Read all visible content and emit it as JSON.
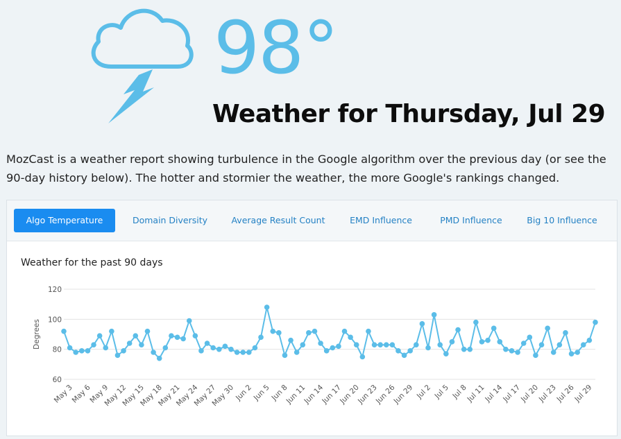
{
  "hero": {
    "icon": "storm-cloud-lightning-icon",
    "temperature": "98°",
    "headline": "Weather for Thursday, Jul 29"
  },
  "intro": "MozCast is a weather report showing turbulence in the Google algorithm over the previous day (or see the 90-day history below). The hotter and stormier the weather, the more Google's rankings changed.",
  "tabs": [
    {
      "label": "Algo Temperature",
      "active": true
    },
    {
      "label": "Domain Diversity",
      "active": false
    },
    {
      "label": "Average Result Count",
      "active": false
    },
    {
      "label": "EMD Influence",
      "active": false
    },
    {
      "label": "PMD Influence",
      "active": false
    },
    {
      "label": "Big 10 Influence",
      "active": false
    }
  ],
  "colors": {
    "accent": "#5bbde8",
    "tab_active": "#1a8cf0",
    "tab_text": "#2481c4",
    "series": "#5bbde8"
  },
  "chart_data": {
    "type": "line",
    "title": "Weather for the past 90 days",
    "ylabel": "Degrees",
    "xlabel": "",
    "ylim": [
      60,
      120
    ],
    "yticks": [
      60,
      80,
      100,
      120
    ],
    "grid": true,
    "x_tick_labels": [
      "May 3",
      "May 6",
      "May 9",
      "May 12",
      "May 15",
      "May 18",
      "May 21",
      "May 24",
      "May 27",
      "May 30",
      "Jun 2",
      "Jun 5",
      "Jun 8",
      "Jun 11",
      "Jun 14",
      "Jun 17",
      "Jun 20",
      "Jun 23",
      "Jun 26",
      "Jun 29",
      "Jul 2",
      "Jul 5",
      "Jul 8",
      "Jul 11",
      "Jul 14",
      "Jul 17",
      "Jul 20",
      "Jul 23",
      "Jul 26",
      "Jul 29"
    ],
    "x_start": "May 2",
    "x_end": "Jul 29",
    "series": [
      {
        "values": [
          92,
          81,
          78,
          79,
          79,
          83,
          89,
          81,
          92,
          76,
          79,
          84,
          89,
          83,
          92,
          78,
          74,
          81,
          89,
          88,
          87,
          99,
          89,
          79,
          84,
          81,
          80,
          82,
          80,
          78,
          78,
          78,
          81,
          88,
          108,
          92,
          91,
          76,
          86,
          78,
          83,
          91,
          92,
          84,
          79,
          81,
          82,
          92,
          88,
          83,
          75,
          92,
          83,
          83,
          83,
          83,
          79,
          76,
          79,
          83,
          97,
          81,
          103,
          83,
          77,
          85,
          93,
          80,
          80,
          98,
          85,
          86,
          94,
          85,
          80,
          79,
          78,
          84,
          88,
          76,
          83,
          94,
          78,
          83,
          91,
          77,
          78,
          83,
          86,
          98
        ]
      }
    ]
  }
}
